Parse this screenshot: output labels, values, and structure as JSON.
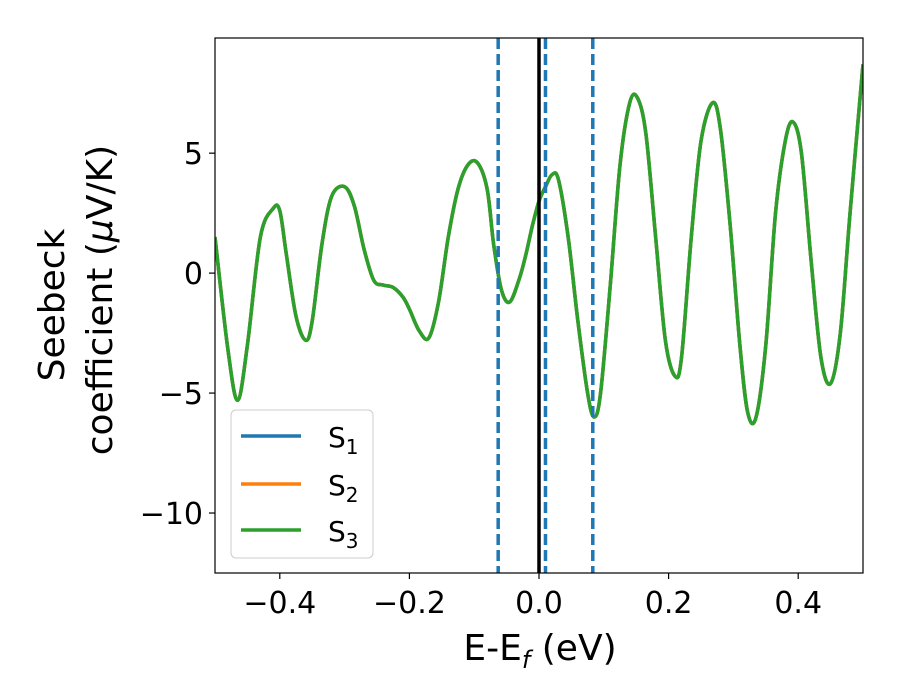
{
  "chart_data": {
    "type": "line",
    "title": "",
    "xlabel": "E-E",
    "xlabel_sub": "f",
    "xlabel_unit": " (eV)",
    "ylabel_line1": "Seebeck",
    "ylabel_line2": "coefficient  (",
    "ylabel_mu": "μ",
    "ylabel_unit": "V/K)",
    "xlim": [
      -0.5,
      0.5
    ],
    "ylim": [
      -12.5,
      9.8
    ],
    "xticks": [
      -0.4,
      -0.2,
      0.0,
      0.2,
      0.4
    ],
    "xtick_labels": [
      "−0.4",
      "−0.2",
      "0.0",
      "0.2",
      "0.4"
    ],
    "yticks": [
      -10,
      -5,
      0,
      5
    ],
    "ytick_labels": [
      "−10",
      "−5",
      "0",
      "5"
    ],
    "grid": false,
    "legend_position": "lower-left",
    "fermi_line_x": 0.0,
    "dashed_lines_x": [
      -0.063,
      0.01,
      0.083
    ],
    "series": [
      {
        "name": "S",
        "sub": "1",
        "color": "#1f77b4"
      },
      {
        "name": "S",
        "sub": "2",
        "color": "#ff7f0e"
      },
      {
        "name": "S",
        "sub": "3",
        "color": "#2ca02c"
      }
    ],
    "x": [
      -0.5,
      -0.48,
      -0.465,
      -0.45,
      -0.43,
      -0.41,
      -0.4,
      -0.39,
      -0.375,
      -0.36,
      -0.35,
      -0.335,
      -0.32,
      -0.3,
      -0.285,
      -0.27,
      -0.255,
      -0.24,
      -0.225,
      -0.21,
      -0.2,
      -0.185,
      -0.17,
      -0.155,
      -0.14,
      -0.125,
      -0.11,
      -0.095,
      -0.08,
      -0.07,
      -0.058,
      -0.045,
      -0.03,
      -0.02,
      -0.01,
      0.0,
      0.01,
      0.02,
      0.03,
      0.045,
      0.06,
      0.075,
      0.085,
      0.095,
      0.11,
      0.125,
      0.14,
      0.152,
      0.165,
      0.18,
      0.195,
      0.21,
      0.22,
      0.235,
      0.25,
      0.268,
      0.28,
      0.295,
      0.31,
      0.322,
      0.335,
      0.35,
      0.365,
      0.38,
      0.392,
      0.405,
      0.42,
      0.435,
      0.45,
      0.465,
      0.48,
      0.5
    ],
    "values": [
      1.5,
      -3.2,
      -5.3,
      -3.0,
      1.5,
      2.7,
      2.6,
      0.8,
      -1.8,
      -2.8,
      -2.0,
      1.2,
      3.2,
      3.6,
      2.8,
      1.0,
      -0.3,
      -0.5,
      -0.6,
      -1.0,
      -1.5,
      -2.4,
      -2.7,
      -1.2,
      1.5,
      3.5,
      4.5,
      4.6,
      3.5,
      1.2,
      -0.7,
      -1.2,
      -0.2,
      0.8,
      2.0,
      3.0,
      3.6,
      4.1,
      3.9,
      1.5,
      -2.0,
      -5.0,
      -6.0,
      -5.0,
      -0.5,
      4.5,
      7.1,
      7.3,
      5.8,
      1.5,
      -2.8,
      -4.3,
      -3.5,
      1.5,
      5.5,
      7.1,
      6.0,
      2.0,
      -3.0,
      -5.8,
      -6.0,
      -3.0,
      2.5,
      5.5,
      6.3,
      5.0,
      0.5,
      -3.5,
      -4.6,
      -2.5,
      2.5,
      8.7
    ]
  }
}
